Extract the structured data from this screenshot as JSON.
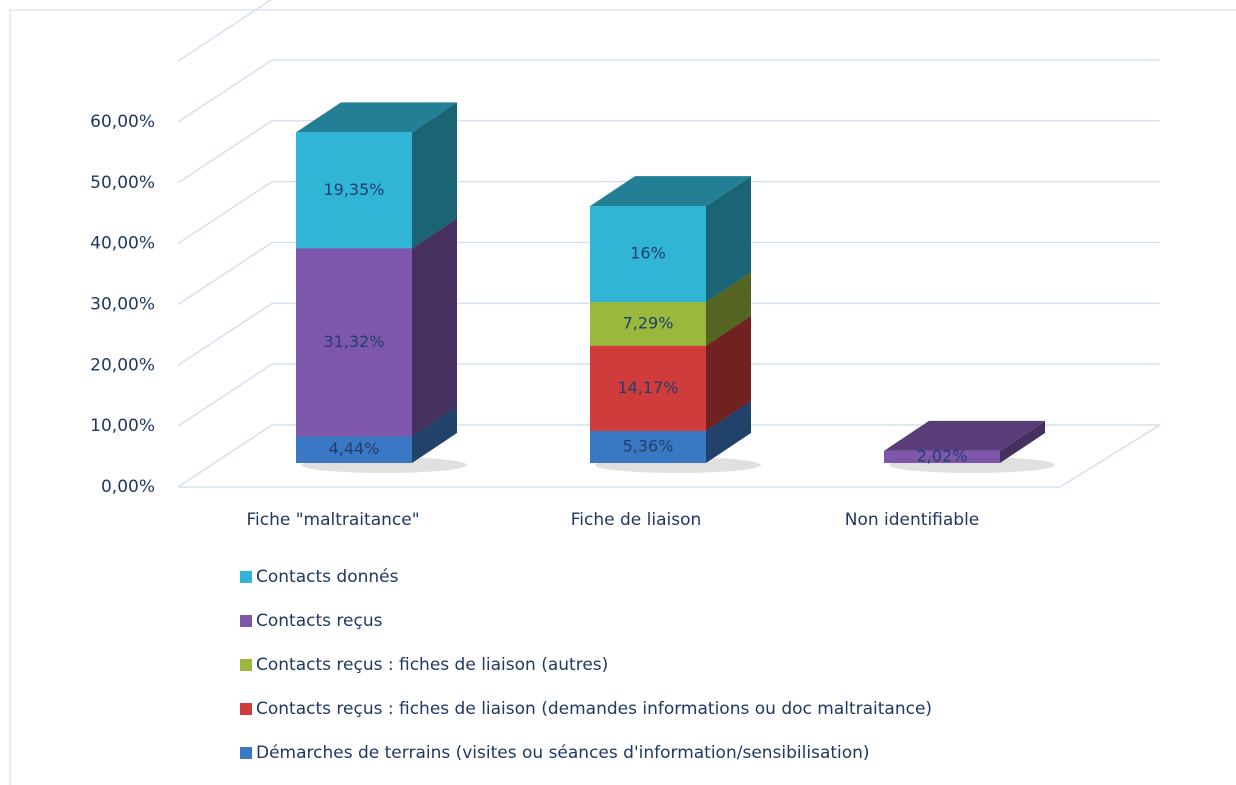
{
  "chart_data": {
    "type": "bar3d_stacked",
    "categories": [
      "Fiche \"maltraitance\"",
      "Fiche de liaison",
      "Non identifiable"
    ],
    "series": [
      {
        "name": "Démarches de terrains (visites ou séances d'information/sensibilisation)",
        "color": "#3a78c3",
        "values": [
          4.44,
          5.36,
          null
        ],
        "value_labels": [
          "4,44%",
          "5,36%",
          null
        ]
      },
      {
        "name": "Contacts reçus : fiches de liaison  (demandes informations ou doc maltraitance)",
        "color": "#d03c3c",
        "values": [
          null,
          14.17,
          null
        ],
        "value_labels": [
          null,
          "14,17%",
          null
        ]
      },
      {
        "name": "Contacts reçus : fiches de liaison (autres)",
        "color": "#99b83c",
        "values": [
          null,
          7.29,
          null
        ],
        "value_labels": [
          null,
          "7,29%",
          null
        ]
      },
      {
        "name": "Contacts reçus",
        "color": "#7e57ac",
        "values": [
          31.32,
          null,
          2.02
        ],
        "value_labels": [
          "31,32%",
          null,
          "2,02%"
        ]
      },
      {
        "name": "Contacts donnés",
        "color": "#31b5d6",
        "values": [
          19.35,
          16,
          null
        ],
        "value_labels": [
          "19,35%",
          "16%",
          null
        ]
      }
    ],
    "ylim": [
      0,
      70
    ],
    "yticks": [
      {
        "value": 0,
        "label": "0,00%"
      },
      {
        "value": 10,
        "label": "10,00%"
      },
      {
        "value": 20,
        "label": "20,00%"
      },
      {
        "value": 30,
        "label": "30,00%"
      },
      {
        "value": 40,
        "label": "40,00%"
      },
      {
        "value": 50,
        "label": "50,00%"
      },
      {
        "value": 60,
        "label": "60,00%"
      }
    ],
    "grid": true
  }
}
